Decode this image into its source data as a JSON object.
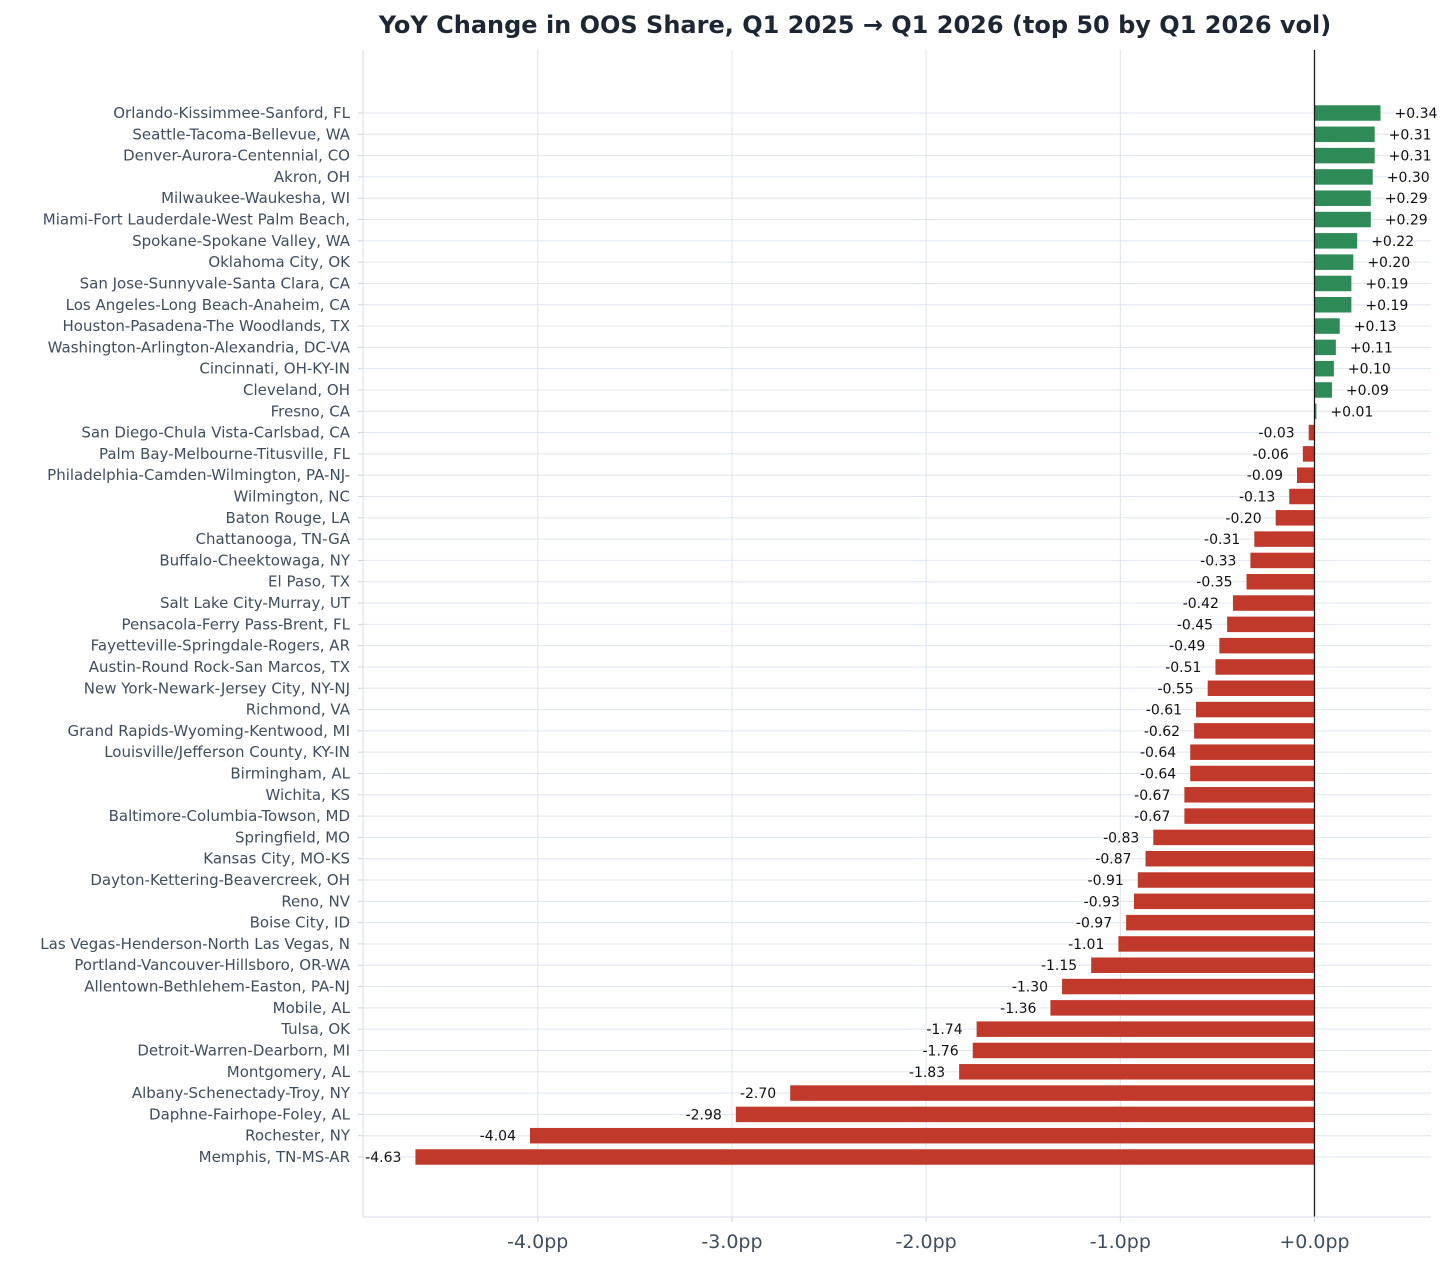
{
  "chart_data": {
    "type": "bar",
    "orientation": "horizontal",
    "title": "YoY Change in OOS Share, Q1 2025 → Q1 2026 (top 50 by Q1 2026 vol)",
    "xlabel": "",
    "ylabel": "",
    "xlim": [
      -4.9,
      0.6
    ],
    "grid": true,
    "x_ticks": [
      -4.0,
      -3.0,
      -2.0,
      -1.0,
      0.0
    ],
    "x_tick_labels": [
      "-4.0pp",
      "-3.0pp",
      "-2.0pp",
      "-1.0pp",
      "+0.0pp"
    ],
    "positive_color": "#2e8b57",
    "negative_color": "#c0392b",
    "categories": [
      "Orlando-Kissimmee-Sanford, FL",
      "Seattle-Tacoma-Bellevue, WA",
      "Denver-Aurora-Centennial, CO",
      "Akron, OH",
      "Milwaukee-Waukesha, WI",
      "Miami-Fort Lauderdale-West Palm Beach,",
      "Spokane-Spokane Valley, WA",
      "Oklahoma City, OK",
      "San Jose-Sunnyvale-Santa Clara, CA",
      "Los Angeles-Long Beach-Anaheim, CA",
      "Houston-Pasadena-The Woodlands, TX",
      "Washington-Arlington-Alexandria, DC-VA",
      "Cincinnati, OH-KY-IN",
      "Cleveland, OH",
      "Fresno, CA",
      "San Diego-Chula Vista-Carlsbad, CA",
      "Palm Bay-Melbourne-Titusville, FL",
      "Philadelphia-Camden-Wilmington, PA-NJ-",
      "Wilmington, NC",
      "Baton Rouge, LA",
      "Chattanooga, TN-GA",
      "Buffalo-Cheektowaga, NY",
      "El Paso, TX",
      "Salt Lake City-Murray, UT",
      "Pensacola-Ferry Pass-Brent, FL",
      "Fayetteville-Springdale-Rogers, AR",
      "Austin-Round Rock-San Marcos, TX",
      "New York-Newark-Jersey City, NY-NJ",
      "Richmond, VA",
      "Grand Rapids-Wyoming-Kentwood, MI",
      "Louisville/Jefferson County, KY-IN",
      "Birmingham, AL",
      "Wichita, KS",
      "Baltimore-Columbia-Towson, MD",
      "Springfield, MO",
      "Kansas City, MO-KS",
      "Dayton-Kettering-Beavercreek, OH",
      "Reno, NV",
      "Boise City, ID",
      "Las Vegas-Henderson-North Las Vegas, N",
      "Portland-Vancouver-Hillsboro, OR-WA",
      "Allentown-Bethlehem-Easton, PA-NJ",
      "Mobile, AL",
      "Tulsa, OK",
      "Detroit-Warren-Dearborn, MI",
      "Montgomery, AL",
      "Albany-Schenectady-Troy, NY",
      "Daphne-Fairhope-Foley, AL",
      "Rochester, NY",
      "Memphis, TN-MS-AR"
    ],
    "values": [
      0.34,
      0.31,
      0.31,
      0.3,
      0.29,
      0.29,
      0.22,
      0.2,
      0.19,
      0.19,
      0.13,
      0.11,
      0.1,
      0.09,
      0.01,
      -0.03,
      -0.06,
      -0.09,
      -0.13,
      -0.2,
      -0.31,
      -0.33,
      -0.35,
      -0.42,
      -0.45,
      -0.49,
      -0.51,
      -0.55,
      -0.61,
      -0.62,
      -0.64,
      -0.64,
      -0.67,
      -0.67,
      -0.83,
      -0.87,
      -0.91,
      -0.93,
      -0.97,
      -1.01,
      -1.15,
      -1.3,
      -1.36,
      -1.74,
      -1.76,
      -1.83,
      -2.7,
      -2.98,
      -4.04,
      -4.63
    ],
    "value_labels": [
      "+0.34",
      "+0.31",
      "+0.31",
      "+0.30",
      "+0.29",
      "+0.29",
      "+0.22",
      "+0.20",
      "+0.19",
      "+0.19",
      "+0.13",
      "+0.11",
      "+0.10",
      "+0.09",
      "+0.01",
      "-0.03",
      "-0.06",
      "-0.09",
      "-0.13",
      "-0.20",
      "-0.31",
      "-0.33",
      "-0.35",
      "-0.42",
      "-0.45",
      "-0.49",
      "-0.51",
      "-0.55",
      "-0.61",
      "-0.62",
      "-0.64",
      "-0.64",
      "-0.67",
      "-0.67",
      "-0.83",
      "-0.87",
      "-0.91",
      "-0.93",
      "-0.97",
      "-1.01",
      "-1.15",
      "-1.30",
      "-1.36",
      "-1.74",
      "-1.76",
      "-1.83",
      "-2.70",
      "-2.98",
      "-4.04",
      "-4.63"
    ]
  }
}
